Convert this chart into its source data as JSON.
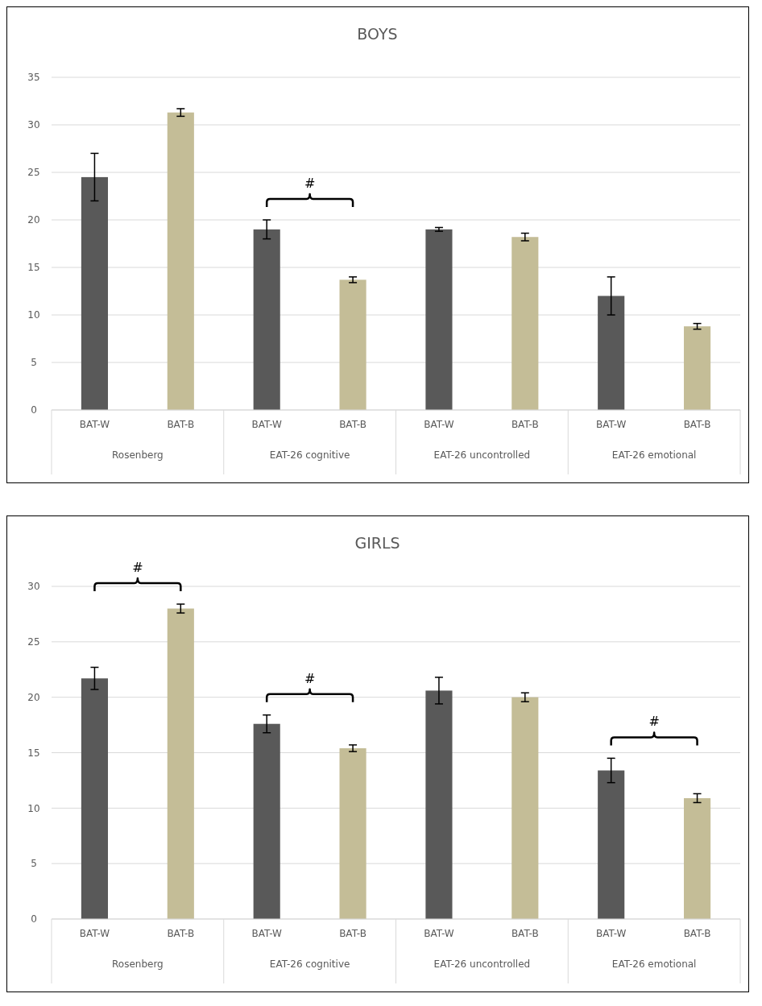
{
  "chart_data": [
    {
      "type": "bar",
      "title": "BOYS",
      "categories": [
        "Rosenberg",
        "EAT-26 cognitive",
        "EAT-26 uncontrolled",
        "EAT-26 emotional"
      ],
      "series": [
        {
          "name": "BAT-W",
          "color": "#595959",
          "values": [
            24.5,
            19.0,
            19.0,
            12.0
          ],
          "errors": [
            2.5,
            1.0,
            0.2,
            2.0
          ]
        },
        {
          "name": "BAT-B",
          "color": "#c4bd97",
          "values": [
            31.3,
            13.7,
            18.2,
            8.8
          ],
          "errors": [
            0.4,
            0.3,
            0.4,
            0.3
          ]
        }
      ],
      "ylim": [
        0,
        35
      ],
      "yticks": [
        0,
        5,
        10,
        15,
        20,
        25,
        30,
        35
      ],
      "grid": "y",
      "annotations": [
        null,
        "#"
      ]
    },
    {
      "type": "bar",
      "title": "GIRLS",
      "categories": [
        "Rosenberg",
        "EAT-26 cognitive",
        "EAT-26 uncontrolled",
        "EAT-26 emotional"
      ],
      "series": [
        {
          "name": "BAT-W",
          "color": "#595959",
          "values": [
            21.7,
            17.6,
            20.6,
            13.4
          ],
          "errors": [
            1.0,
            0.8,
            1.2,
            1.1
          ]
        },
        {
          "name": "BAT-B",
          "color": "#c4bd97",
          "values": [
            28.0,
            15.4,
            20.0,
            10.9
          ],
          "errors": [
            0.4,
            0.3,
            0.4,
            0.4
          ]
        }
      ],
      "ylim": [
        0,
        30
      ],
      "yticks": [
        0,
        5,
        10,
        15,
        20,
        25,
        30
      ],
      "grid": "y",
      "annotations": [
        "#",
        "#",
        null,
        "#"
      ]
    }
  ]
}
